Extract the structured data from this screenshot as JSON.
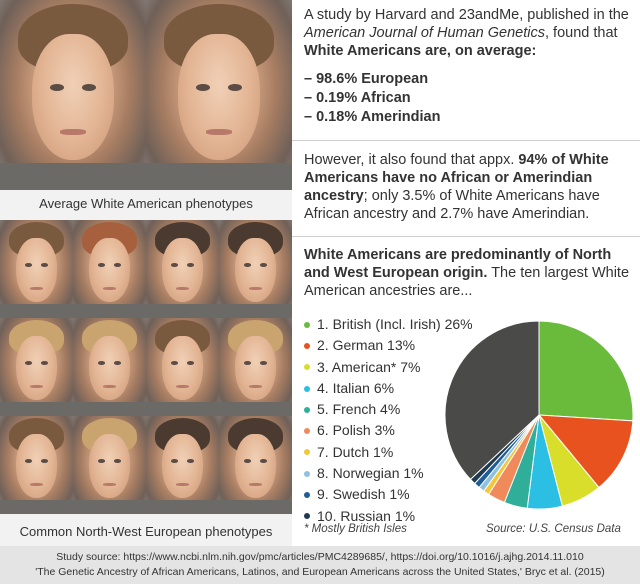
{
  "left": {
    "caption_top": "Average White American phenotypes",
    "caption_bottom": "Common North-West European phenotypes"
  },
  "block1": {
    "intro_1": "A study by Harvard and 23andMe, published in the ",
    "journal": "American Journal of Human Genetics",
    "intro_2": ", found that ",
    "intro_bold": "White Americans are, on average:",
    "items": [
      "– 98.6% European",
      "– 0.19% African",
      "– 0.18% Amerindian"
    ]
  },
  "block2": {
    "t1": "However, it also found that appx. ",
    "bold": "94% of White Americans have no African or Amerindian ancestry",
    "t2": "; only 3.5% of White Americans have African ancestry and 2.7% have Amerindian."
  },
  "block3": {
    "bold": "White Americans are predominantly of North and West European origin.",
    "t1": " The ten largest White American ancestries are..."
  },
  "chart_data": {
    "type": "pie",
    "categories": [
      "1. British (Incl. Irish) 26%",
      "2. German 13%",
      "3. American* 7%",
      "4. Italian 6%",
      "5. French 4%",
      "6. Polish 3%",
      "7. Dutch 1%",
      "8. Norwegian 1%",
      "9. Swedish 1%",
      "10. Russian 1%"
    ],
    "values": [
      26,
      13,
      7,
      6,
      4,
      3,
      1,
      1,
      1,
      1
    ],
    "remainder": 37,
    "colors": [
      "#6abb3c",
      "#e8521f",
      "#d9de2a",
      "#2bbfe3",
      "#2fae9a",
      "#f08a5a",
      "#f2c73a",
      "#8fc1df",
      "#1f5c9a",
      "#1f3a4f"
    ],
    "remainder_color": "#4a4a48",
    "legend_position": "left"
  },
  "footnote": "* Mostly British Isles",
  "source": "Source: U.S. Census Data",
  "bottom": {
    "line1": "Study source: https://www.ncbi.nlm.nih.gov/pmc/articles/PMC4289685/, https://doi.org/10.1016/j.ajhg.2014.11.010",
    "line2": "'The Genetic Ancestry of African Americans, Latinos, and European Americans across the United States,' Bryc et al. (2015)"
  }
}
